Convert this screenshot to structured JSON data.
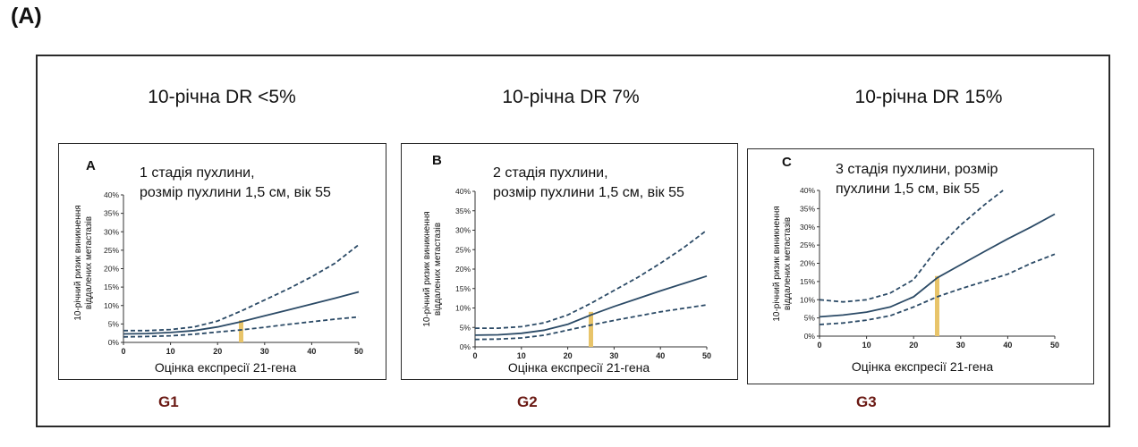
{
  "figure_label": "(A)",
  "columns": [
    {
      "title": "10-річна DR <5%",
      "grade": "G1"
    },
    {
      "title": "10-річна DR 7%",
      "grade": "G2"
    },
    {
      "title": "10-річна DR 15%",
      "grade": "G3"
    }
  ],
  "panels": [
    {
      "letter": "A",
      "description": "1 стадія пухлини,\nрозмір пухлини 1,5 см, вік 55",
      "ylabel": "10-річний ризик виникнення\nвіддалених метастазів",
      "xlabel": "Оцінка експресії 21-гена"
    },
    {
      "letter": "B",
      "description": "2 стадія пухлини,\nрозмір пухлини 1,5 см, вік 55",
      "ylabel": "10-річний ризик виникнення\nвіддалених метастазів",
      "xlabel": "Оцінка експресії 21-гена"
    },
    {
      "letter": "C",
      "description": "3 стадія пухлини, розмір\nпухлини 1,5 см, вік 55",
      "ylabel": "10-річний ризик виникнення\nвіддалених метастазів",
      "xlabel": "Оцінка експресії 21-гена"
    }
  ],
  "colors": {
    "line": "#2b4a66",
    "marker": "#e8c46a"
  },
  "chart_data": [
    {
      "type": "line",
      "xlabel": "Оцінка експресії 21-гена",
      "ylabel": "10-річний ризик виникнення віддалених метастазів",
      "xlim": [
        0,
        50
      ],
      "ylim": [
        0,
        40
      ],
      "xticks": [
        "0",
        "10",
        "20",
        "30",
        "40",
        "50"
      ],
      "yticks": [
        "0%",
        "5%",
        "10%",
        "15%",
        "20%",
        "25%",
        "30%",
        "35%",
        "40%"
      ],
      "series": [
        {
          "style": "dashed",
          "x": [
            0,
            5,
            10,
            15,
            20,
            25,
            30,
            35,
            40,
            45,
            50
          ],
          "y": [
            3.2,
            3.2,
            3.5,
            4.2,
            5.8,
            8.5,
            11.5,
            14.5,
            17.8,
            21.5,
            26.5
          ]
        },
        {
          "style": "solid",
          "x": [
            0,
            5,
            10,
            15,
            20,
            25,
            30,
            35,
            40,
            45,
            50
          ],
          "y": [
            2.3,
            2.4,
            2.7,
            3.2,
            4.2,
            5.6,
            7.2,
            8.8,
            10.4,
            12,
            13.7
          ]
        },
        {
          "style": "dashed",
          "x": [
            0,
            5,
            10,
            15,
            20,
            25,
            30,
            35,
            40,
            45,
            50
          ],
          "y": [
            1.5,
            1.6,
            1.8,
            2.2,
            2.8,
            3.4,
            4.1,
            4.9,
            5.6,
            6.3,
            6.9
          ]
        }
      ],
      "marker": {
        "x": 25,
        "y_from": 0,
        "y_to": 6
      }
    },
    {
      "type": "line",
      "xlabel": "Оцінка експресії 21-гена",
      "ylabel": "10-річний ризик виникнення віддалених метастазів",
      "xlim": [
        0,
        50
      ],
      "ylim": [
        0,
        40
      ],
      "xticks": [
        "0",
        "10",
        "20",
        "30",
        "40",
        "50"
      ],
      "yticks": [
        "0%",
        "5%",
        "10%",
        "15%",
        "20%",
        "25%",
        "30%",
        "35%",
        "40%"
      ],
      "series": [
        {
          "style": "dashed",
          "x": [
            0,
            5,
            10,
            15,
            20,
            25,
            30,
            35,
            40,
            45,
            50
          ],
          "y": [
            4.8,
            4.8,
            5.2,
            6.2,
            8.2,
            11.2,
            14.5,
            17.8,
            21.5,
            25.5,
            30
          ]
        },
        {
          "style": "solid",
          "x": [
            0,
            5,
            10,
            15,
            20,
            25,
            30,
            35,
            40,
            45,
            50
          ],
          "y": [
            3,
            3.1,
            3.5,
            4.3,
            5.8,
            8.2,
            10.4,
            12.4,
            14.4,
            16.3,
            18.2
          ]
        },
        {
          "style": "dashed",
          "x": [
            0,
            5,
            10,
            15,
            20,
            25,
            30,
            35,
            40,
            45,
            50
          ],
          "y": [
            1.9,
            2,
            2.3,
            3,
            4.3,
            5.6,
            6.8,
            7.9,
            9,
            9.9,
            10.8
          ]
        }
      ],
      "marker": {
        "x": 25,
        "y_from": 0,
        "y_to": 9
      }
    },
    {
      "type": "line",
      "xlabel": "Оцінка експресії 21-гена",
      "ylabel": "10-річний ризик виникнення віддалених метастазів",
      "xlim": [
        0,
        50
      ],
      "ylim": [
        0,
        40
      ],
      "xticks": [
        "0",
        "10",
        "20",
        "30",
        "40",
        "50"
      ],
      "yticks": [
        "0%",
        "5%",
        "10%",
        "15%",
        "20%",
        "25%",
        "30%",
        "35%",
        "40%"
      ],
      "series": [
        {
          "style": "dashed",
          "x": [
            0,
            5,
            10,
            15,
            20,
            25,
            30,
            35,
            39
          ],
          "y": [
            10,
            9.4,
            10,
            11.8,
            15.5,
            24,
            30.5,
            36,
            40
          ]
        },
        {
          "style": "solid",
          "x": [
            0,
            5,
            10,
            15,
            20,
            25,
            30,
            35,
            40,
            45,
            50
          ],
          "y": [
            5.3,
            5.8,
            6.6,
            8,
            10.8,
            16,
            19.6,
            23.2,
            26.7,
            30,
            33.5
          ]
        },
        {
          "style": "dashed",
          "x": [
            0,
            5,
            10,
            15,
            20,
            25,
            30,
            35,
            40,
            45,
            50
          ],
          "y": [
            3.2,
            3.6,
            4.4,
            5.6,
            8,
            10.8,
            13,
            15,
            17,
            20,
            22.5
          ]
        }
      ],
      "marker": {
        "x": 25,
        "y_from": 0,
        "y_to": 16.5
      }
    }
  ]
}
